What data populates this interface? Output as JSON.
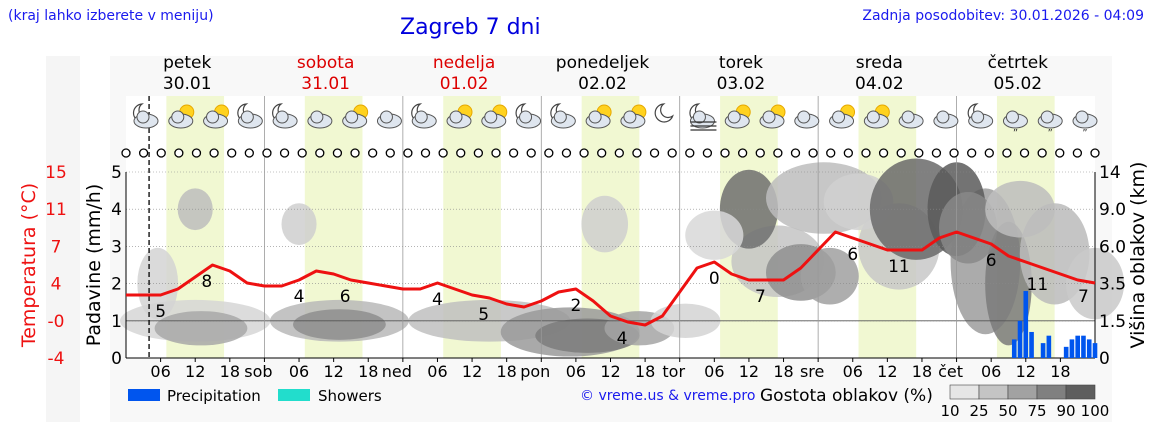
{
  "header": {
    "note": "(kraj lahko izberete v meniju)",
    "title": "Zagreb 7 dni",
    "updated": "Zadnja posodobitev: 30.01.2026 - 04:09"
  },
  "days": [
    {
      "name": "petek",
      "date": "30.01",
      "weekend": false
    },
    {
      "name": "sobota",
      "date": "31.01",
      "weekend": true
    },
    {
      "name": "nedelja",
      "date": "01.02",
      "weekend": true
    },
    {
      "name": "ponedeljek",
      "date": "02.02",
      "weekend": false
    },
    {
      "name": "torek",
      "date": "03.02",
      "weekend": false
    },
    {
      "name": "sreda",
      "date": "04.02",
      "weekend": false
    },
    {
      "name": "četrtek",
      "date": "05.02",
      "weekend": false
    }
  ],
  "x_tick_labels": [
    "06",
    "12",
    "18",
    "sob",
    "06",
    "12",
    "18",
    "ned",
    "06",
    "12",
    "18",
    "pon",
    "06",
    "12",
    "18",
    "tor",
    "06",
    "12",
    "18",
    "sre",
    "06",
    "12",
    "18",
    "čet",
    "06",
    "12",
    "18"
  ],
  "weather_icons": [
    "cloudy-night-icon",
    "partly-cloudy-day-icon",
    "partly-cloudy-day-icon",
    "moon-cloud-icon",
    "moon-cloud-icon",
    "cloudy-icon",
    "partly-cloudy-day-icon",
    "cloudy-icon",
    "moon-cloud-icon",
    "partly-cloudy-day-icon",
    "partly-cloudy-day-icon",
    "moon-cloud-icon",
    "cloudy-night-icon",
    "partly-cloudy-day-icon",
    "partly-cloudy-day-icon",
    "moon-icon",
    "fog-night-icon",
    "partly-cloudy-day-icon",
    "partly-cloudy-day-icon",
    "cloudy-icon",
    "partly-cloudy-day-icon",
    "partly-cloudy-day-icon",
    "cloudy-icon",
    "cloudy-icon",
    "moon-cloud-icon",
    "drizzle-icon",
    "drizzle-icon",
    "drizzle-icon"
  ],
  "wind_symbols": [
    "calm",
    "calm",
    "calm",
    "calm",
    "calm",
    "calm",
    "calm",
    "calm",
    "calm",
    "calm",
    "calm",
    "calm",
    "calm",
    "calm",
    "calm",
    "calm",
    "calm",
    "calm",
    "calm",
    "calm",
    "calm",
    "calm",
    "calm",
    "calm",
    "calm",
    "calm",
    "calm",
    "calm",
    "calm",
    "calm",
    "calm",
    "calm",
    "calm",
    "calm",
    "calm",
    "calm",
    "calm",
    "calm",
    "calm",
    "calm",
    "calm",
    "calm",
    "calm",
    "calm",
    "calm",
    "calm",
    "calm",
    "calm",
    "calm",
    "calm",
    "calm",
    "calm",
    "calm",
    "calm",
    "calm",
    "calm"
  ],
  "chart_data": {
    "type": "line",
    "series": [
      {
        "name": "Temperatura (°C)",
        "color": "#ee1111",
        "x_hours": [
          0,
          3,
          6,
          9,
          12,
          15,
          18,
          21,
          24,
          27,
          30,
          33,
          36,
          39,
          42,
          45,
          48,
          51,
          54,
          57,
          60,
          63,
          66,
          69,
          72,
          75,
          78,
          81,
          84,
          87,
          90,
          93,
          96,
          99,
          102,
          105,
          108,
          111,
          114,
          117,
          120,
          123,
          126,
          129,
          132,
          135,
          138,
          141,
          144,
          147,
          150,
          153,
          156,
          159,
          162,
          165,
          168
        ],
        "values": [
          2.5,
          2.5,
          2.5,
          3.5,
          5.5,
          7.5,
          6.5,
          4.5,
          4,
          4,
          5,
          6.5,
          6,
          5,
          4.5,
          4,
          3.5,
          3.5,
          4.5,
          3.5,
          2.5,
          2,
          1,
          0.5,
          1.5,
          3,
          3.5,
          1.5,
          -1,
          -2,
          -2.5,
          -1,
          3,
          7,
          8,
          6,
          5,
          5,
          5,
          7,
          10,
          13,
          12,
          11,
          10,
          10,
          10,
          12,
          13,
          12,
          11,
          9,
          8,
          7,
          6,
          5,
          4.5
        ],
        "labels": [
          {
            "x_hours": 6,
            "text": "5"
          },
          {
            "x_hours": 14,
            "text": "8"
          },
          {
            "x_hours": 30,
            "text": "4"
          },
          {
            "x_hours": 38,
            "text": "6"
          },
          {
            "x_hours": 54,
            "text": "4"
          },
          {
            "x_hours": 62,
            "text": "5"
          },
          {
            "x_hours": 78,
            "text": "2"
          },
          {
            "x_hours": 86,
            "text": "4"
          },
          {
            "x_hours": 102,
            "text": "0"
          },
          {
            "x_hours": 110,
            "text": "7"
          },
          {
            "x_hours": 126,
            "text": "6"
          },
          {
            "x_hours": 134,
            "text": "11"
          },
          {
            "x_hours": 150,
            "text": "6"
          },
          {
            "x_hours": 158,
            "text": "11"
          },
          {
            "x_hours": 166,
            "text": "7"
          }
        ]
      },
      {
        "name": "Precipitation",
        "color": "#0055ee",
        "bars": [
          {
            "x_hours": 154,
            "value": 0.5
          },
          {
            "x_hours": 155,
            "value": 1.0
          },
          {
            "x_hours": 156,
            "value": 1.8
          },
          {
            "x_hours": 157,
            "value": 0.7
          },
          {
            "x_hours": 159,
            "value": 0.4
          },
          {
            "x_hours": 160,
            "value": 0.6
          },
          {
            "x_hours": 163,
            "value": 0.3
          },
          {
            "x_hours": 164,
            "value": 0.5
          },
          {
            "x_hours": 165,
            "value": 0.6
          },
          {
            "x_hours": 166,
            "value": 0.6
          },
          {
            "x_hours": 167,
            "value": 0.5
          },
          {
            "x_hours": 168,
            "value": 0.4
          }
        ]
      },
      {
        "name": "Showers",
        "color": "#22ddcc",
        "bars": []
      }
    ],
    "axes": {
      "precip": {
        "label": "Padavine (mm/h)",
        "min": 0,
        "max": 5,
        "ticks": [
          "0",
          "1",
          "2",
          "3",
          "4",
          "5"
        ]
      },
      "temperature": {
        "label": "Temperatura (°C)",
        "ticks": [
          "15",
          "11",
          "7",
          "4",
          "-0",
          "-4"
        ]
      },
      "cloud_height": {
        "label": "Višina oblakov (km)",
        "ticks": [
          "14",
          "9.0",
          "6.0",
          "3.5",
          "1.5",
          "0"
        ]
      }
    },
    "cloud_density": {
      "label": "Gostota oblakov (%)",
      "levels": [
        "10",
        "25",
        "50",
        "75",
        "90",
        "100"
      ]
    },
    "copyright": "© vreme.us & vreme.pro"
  }
}
